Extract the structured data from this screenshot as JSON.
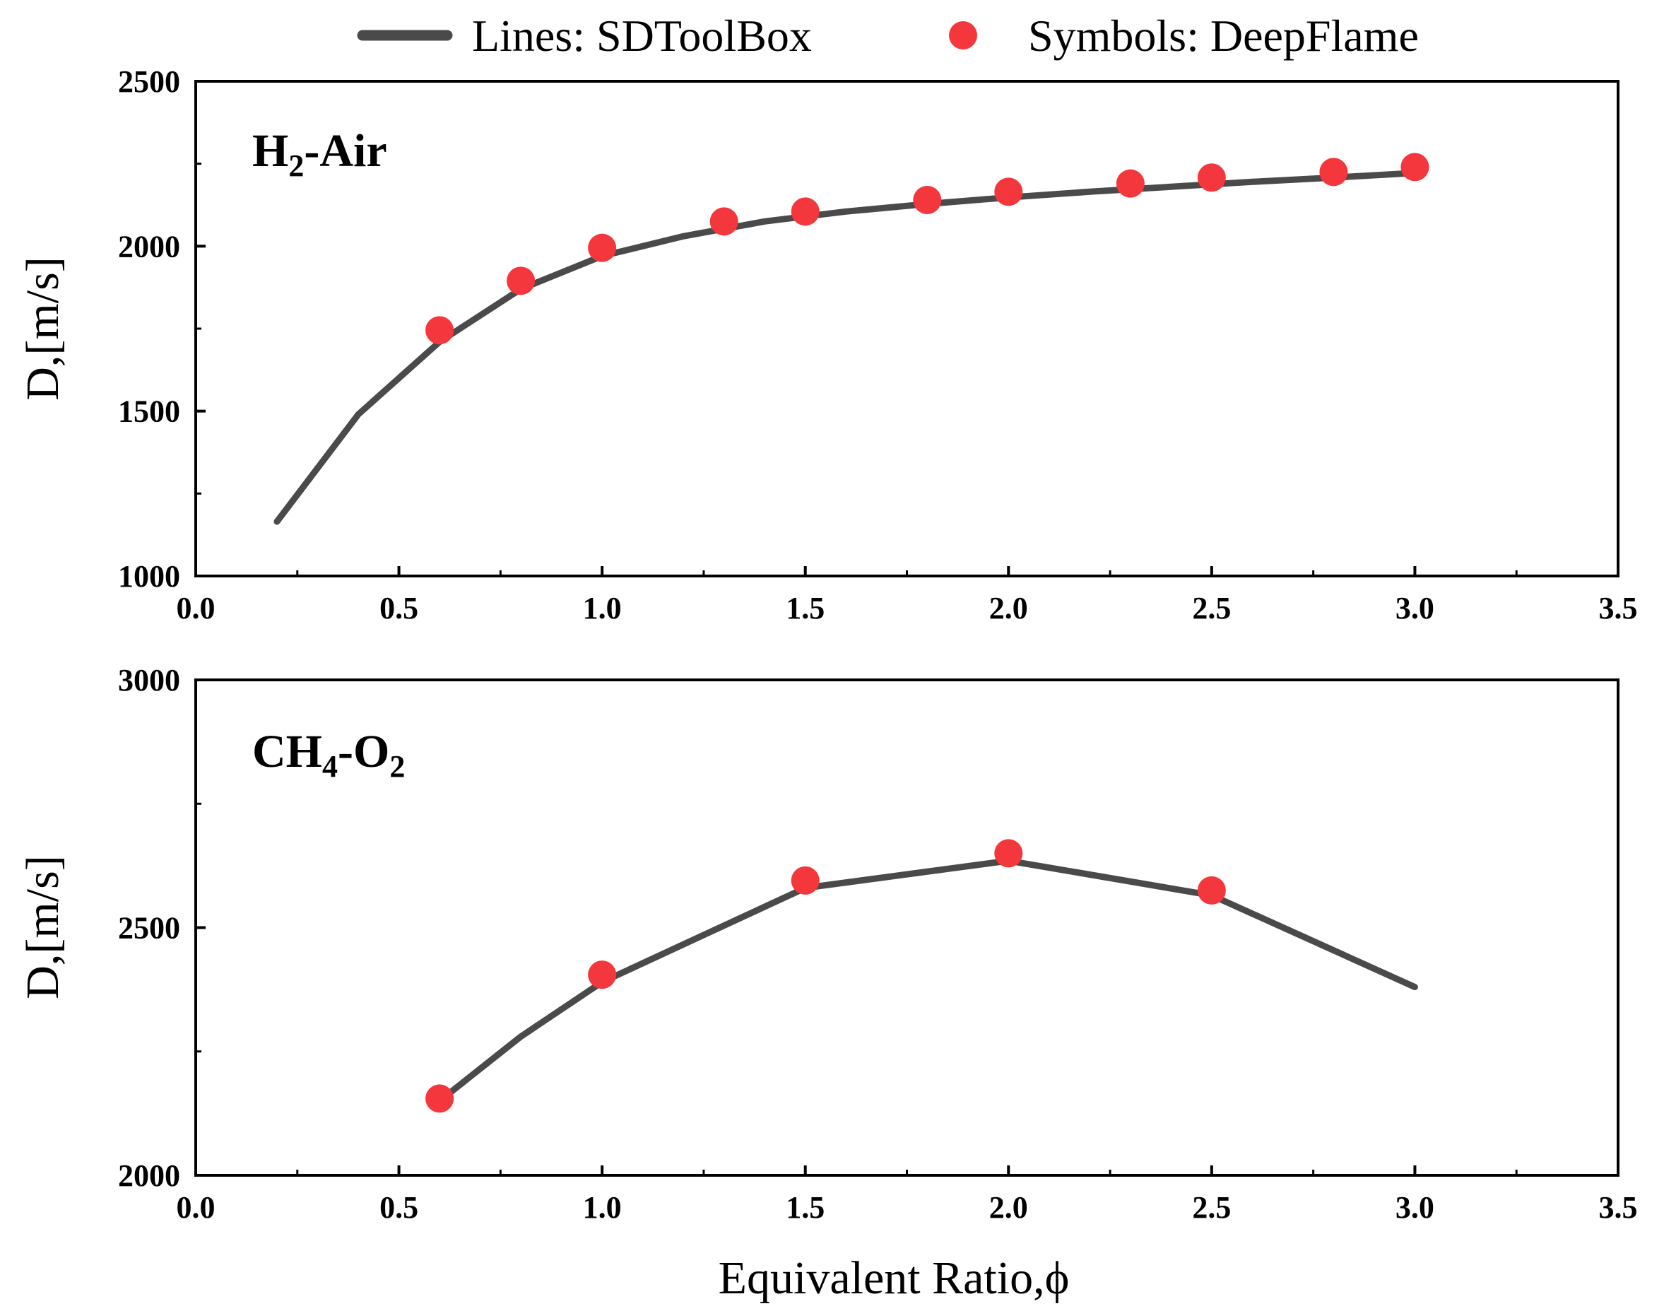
{
  "legend": {
    "line_label": "Lines: SDToolBox",
    "symbol_label": "Symbols: DeepFlame"
  },
  "colors": {
    "line": "#4a4a4a",
    "marker": "#f4373c",
    "axis": "#000000"
  },
  "xlabel": "Equivalent Ratio,ϕ",
  "chart_data": [
    {
      "type": "line",
      "panel_label": {
        "main": "H",
        "sub1": "2",
        "rest": "-Air",
        "sub2": ""
      },
      "ylabel": "D,[m/s]",
      "xlim": [
        0.0,
        3.5
      ],
      "ylim": [
        1000,
        2500
      ],
      "x_ticks": [
        "0.0",
        "0.5",
        "1.0",
        "1.5",
        "2.0",
        "2.5",
        "3.0",
        "3.5"
      ],
      "y_ticks": [
        "1000",
        "1500",
        "2000",
        "2500"
      ],
      "series": [
        {
          "name": "SDToolBox",
          "kind": "line",
          "x": [
            0.2,
            0.4,
            0.6,
            0.8,
            1.0,
            1.2,
            1.4,
            1.6,
            1.8,
            2.0,
            2.2,
            2.4,
            2.6,
            2.8,
            3.0
          ],
          "y": [
            1165,
            1490,
            1710,
            1870,
            1970,
            2030,
            2075,
            2105,
            2128,
            2148,
            2165,
            2180,
            2195,
            2208,
            2222
          ]
        },
        {
          "name": "DeepFlame",
          "kind": "scatter",
          "x": [
            0.6,
            0.8,
            1.0,
            1.3,
            1.5,
            1.8,
            2.0,
            2.3,
            2.5,
            2.8,
            3.0
          ],
          "y": [
            1745,
            1895,
            1995,
            2075,
            2105,
            2140,
            2165,
            2190,
            2208,
            2225,
            2240
          ]
        }
      ]
    },
    {
      "type": "line",
      "panel_label": {
        "main": "CH",
        "sub1": "4",
        "rest": "-O",
        "sub2": "2"
      },
      "ylabel": "D,[m/s]",
      "xlim": [
        0.0,
        3.5
      ],
      "ylim": [
        2000,
        3000
      ],
      "x_ticks": [
        "0.0",
        "0.5",
        "1.0",
        "1.5",
        "2.0",
        "2.5",
        "3.0",
        "3.5"
      ],
      "y_ticks": [
        "2000",
        "2500",
        "3000"
      ],
      "series": [
        {
          "name": "SDToolBox",
          "kind": "line",
          "x": [
            0.6,
            0.8,
            1.0,
            1.5,
            2.0,
            2.5,
            3.0
          ],
          "y": [
            2150,
            2280,
            2390,
            2580,
            2635,
            2565,
            2380
          ]
        },
        {
          "name": "DeepFlame",
          "kind": "scatter",
          "x": [
            0.6,
            1.0,
            1.5,
            2.0,
            2.5
          ],
          "y": [
            2155,
            2405,
            2595,
            2650,
            2575
          ]
        }
      ]
    }
  ]
}
